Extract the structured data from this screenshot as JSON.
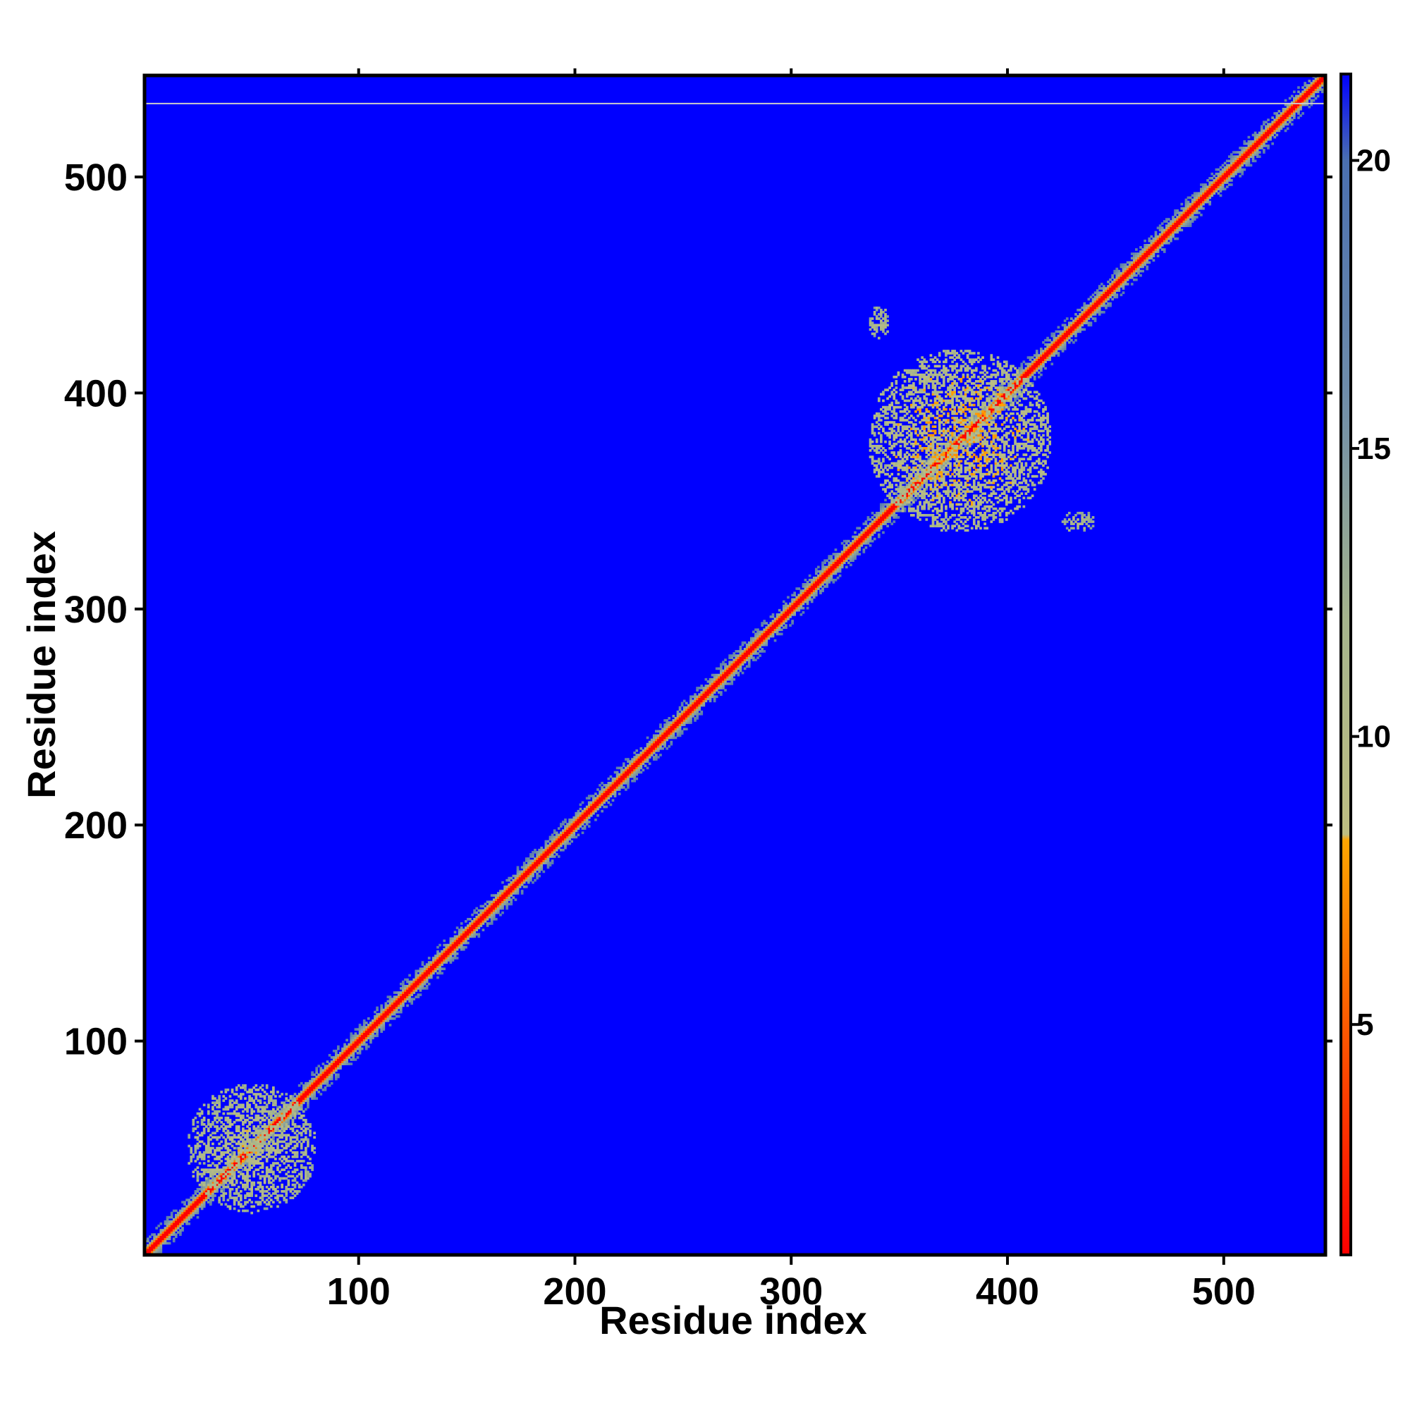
{
  "chart_data": {
    "type": "heatmap",
    "title": "",
    "xlabel": "Residue index",
    "ylabel": "Residue index",
    "xlim": [
      1,
      547
    ],
    "ylim": [
      1,
      547
    ],
    "x_ticks": [
      100,
      200,
      300,
      400,
      500
    ],
    "y_ticks": [
      100,
      200,
      300,
      400,
      500
    ],
    "colorbar": {
      "min": 1,
      "max": 21.5,
      "ticks": [
        5,
        10,
        15,
        20
      ],
      "stops": [
        {
          "value": 1,
          "color": "#ff0000"
        },
        {
          "value": 5,
          "color": "#ff5a00"
        },
        {
          "value": 8.2,
          "color": "#ffa500"
        },
        {
          "value": 8.3,
          "color": "#bebe82"
        },
        {
          "value": 12,
          "color": "#a5b48c"
        },
        {
          "value": 16,
          "color": "#6e8caa"
        },
        {
          "value": 20,
          "color": "#4a6fb0"
        },
        {
          "value": 21.5,
          "color": "#0000ff"
        }
      ]
    },
    "background_value": 21.5,
    "background_color": "#0000ff",
    "features": [
      {
        "kind": "diagonal",
        "from": 1,
        "to": 547,
        "value": 1
      },
      {
        "kind": "contact-cluster",
        "x_range": [
          20,
          80
        ],
        "y_range": [
          20,
          80
        ],
        "value": 12
      },
      {
        "kind": "contact-cluster",
        "x_range": [
          335,
          420
        ],
        "y_range": [
          335,
          420
        ],
        "value": 11
      },
      {
        "kind": "contact-cluster",
        "x_range": [
          335,
          345
        ],
        "y_range": [
          425,
          440
        ],
        "value": 13
      },
      {
        "kind": "contact-cluster",
        "x_range": [
          425,
          440
        ],
        "y_range": [
          335,
          345
        ],
        "value": 13
      },
      {
        "kind": "row-line",
        "y": 534,
        "color": "#cccccc"
      }
    ]
  }
}
